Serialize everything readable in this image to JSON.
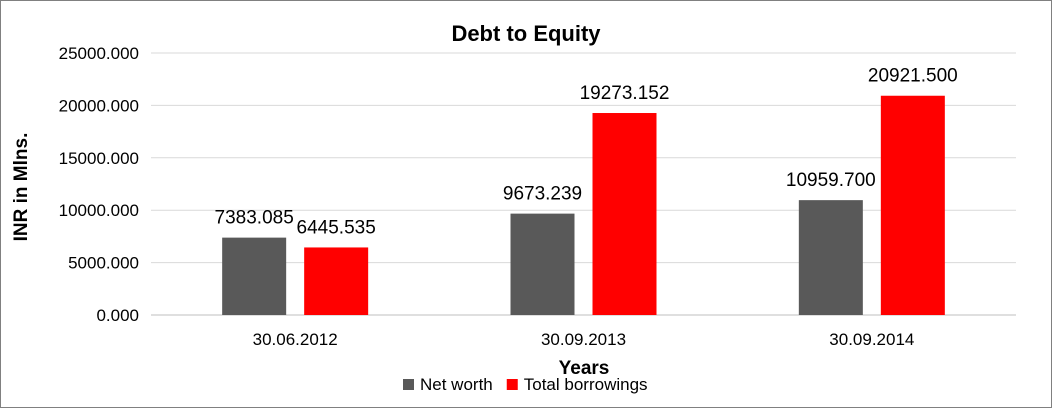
{
  "chart_data": {
    "type": "bar",
    "title": "Debt to Equity",
    "xlabel": "Years",
    "ylabel": "INR in Mlns.",
    "categories": [
      "30.06.2012",
      "30.09.2013",
      "30.09.2014"
    ],
    "series": [
      {
        "name": "Net worth",
        "color": "#595959",
        "values": [
          7383.085,
          9673.239,
          10959.7
        ],
        "labels": [
          "7383.085",
          "9673.239",
          "10959.700"
        ]
      },
      {
        "name": "Total borrowings",
        "color": "#ff0000",
        "values": [
          6445.535,
          19273.152,
          20921.5
        ],
        "labels": [
          "6445.535",
          "19273.152",
          "20921.500"
        ]
      }
    ],
    "ylim": [
      0,
      25000
    ],
    "yticks": [
      0,
      5000,
      10000,
      15000,
      20000,
      25000
    ],
    "ytick_labels": [
      "0.000",
      "5000.000",
      "10000.000",
      "15000.000",
      "20000.000",
      "25000.000"
    ],
    "grid": true,
    "legend_position": "bottom"
  }
}
